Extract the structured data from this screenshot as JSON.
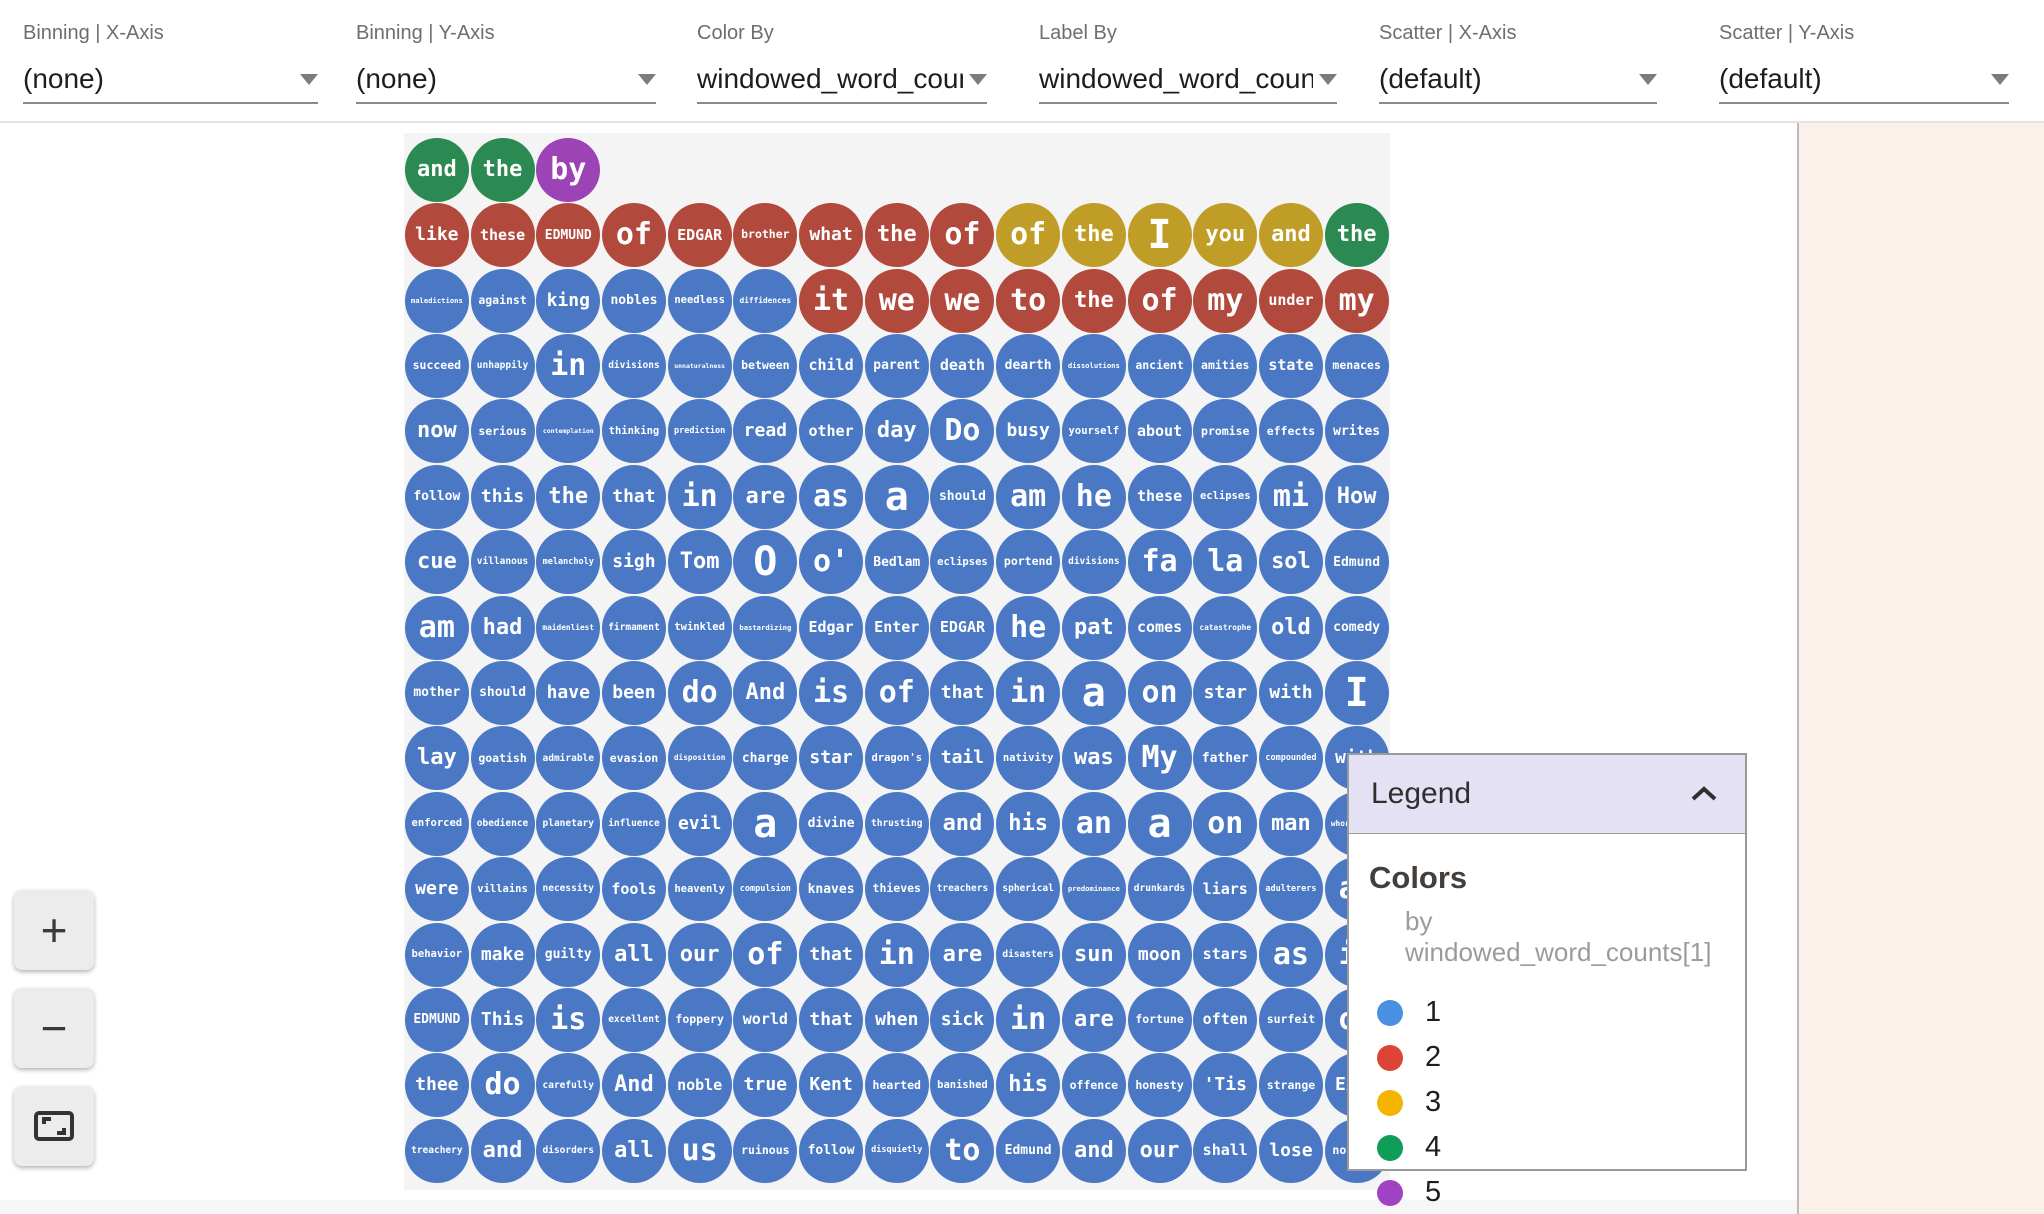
{
  "toolbar": {
    "dropdowns": [
      {
        "label": "Binning | X-Axis",
        "value": "(none)"
      },
      {
        "label": "Binning | Y-Axis",
        "value": "(none)"
      },
      {
        "label": "Color By",
        "value": "windowed_word_counts"
      },
      {
        "label": "Label By",
        "value": "windowed_word_counts"
      },
      {
        "label": "Scatter | X-Axis",
        "value": "(default)"
      },
      {
        "label": "Scatter | Y-Axis",
        "value": "(default)"
      }
    ]
  },
  "zoom_controls": {
    "zoom_in_label": "+",
    "zoom_out_label": "−",
    "fit_label": "fit-to-screen"
  },
  "legend": {
    "title": "Legend",
    "colors_heading": "Colors",
    "colors_subtitle": "by windowed_word_counts[1]",
    "items": [
      {
        "label": "1",
        "color": "#4a90e2"
      },
      {
        "label": "2",
        "color": "#db4437"
      },
      {
        "label": "3",
        "color": "#f4b400"
      },
      {
        "label": "4",
        "color": "#0f9d58"
      },
      {
        "label": "5",
        "color": "#a142c4"
      }
    ]
  },
  "chart_data": {
    "type": "bubble-grid",
    "description": "Facets-Dive style packed grid of word bubbles; color encodes windowed_word_counts[1] (1=blue, 2=red, 3=yellow, 4=green, 5=purple)",
    "color_by": "windowed_word_counts[1]",
    "grid_size": {
      "rows": 16,
      "cols": 15
    },
    "palette": {
      "1": "#4a78c5",
      "2": "#b2493d",
      "3": "#bf9d27",
      "4": "#2b8a52",
      "5": "#9c44b5"
    },
    "rows": [
      {
        "words": [
          "and",
          "the",
          "by"
        ],
        "counts": [
          4,
          4,
          5
        ]
      },
      {
        "words": [
          "like",
          "these",
          "EDMUND",
          "of",
          "EDGAR",
          "brother",
          "what",
          "the",
          "of",
          "of",
          "the",
          "I",
          "you",
          "and",
          "the"
        ],
        "counts": [
          2,
          2,
          2,
          2,
          2,
          2,
          2,
          2,
          2,
          3,
          3,
          3,
          3,
          3,
          4
        ]
      },
      {
        "words": [
          "maledictions",
          "against",
          "king",
          "nobles",
          "needless",
          "diffidences",
          "it",
          "we",
          "we",
          "to",
          "the",
          "of",
          "my",
          "under",
          "my"
        ],
        "counts": [
          1,
          1,
          1,
          1,
          1,
          1,
          2,
          2,
          2,
          2,
          2,
          2,
          2,
          2,
          2
        ]
      },
      {
        "words": [
          "succeed",
          "unhappily",
          "in",
          "divisions",
          "unnaturalness",
          "between",
          "child",
          "parent",
          "death",
          "dearth",
          "dissolutions",
          "ancient",
          "amities",
          "state",
          "menaces"
        ],
        "counts": [
          1,
          1,
          1,
          1,
          1,
          1,
          1,
          1,
          1,
          1,
          1,
          1,
          1,
          1,
          1
        ]
      },
      {
        "words": [
          "now",
          "serious",
          "contemplation",
          "thinking",
          "prediction",
          "read",
          "other",
          "day",
          "Do",
          "busy",
          "yourself",
          "about",
          "promise",
          "effects",
          "writes"
        ],
        "counts": [
          1,
          1,
          1,
          1,
          1,
          1,
          1,
          1,
          1,
          1,
          1,
          1,
          1,
          1,
          1
        ]
      },
      {
        "words": [
          "follow",
          "this",
          "the",
          "that",
          "in",
          "are",
          "as",
          "a",
          "should",
          "am",
          "he",
          "these",
          "eclipses",
          "mi",
          "How"
        ],
        "counts": [
          1,
          1,
          1,
          1,
          1,
          1,
          1,
          1,
          1,
          1,
          1,
          1,
          1,
          1,
          1
        ]
      },
      {
        "words": [
          "cue",
          "villanous",
          "melancholy",
          "sigh",
          "Tom",
          "O",
          "o'",
          "Bedlam",
          "eclipses",
          "portend",
          "divisions",
          "fa",
          "la",
          "sol",
          "Edmund"
        ],
        "counts": [
          1,
          1,
          1,
          1,
          1,
          1,
          1,
          1,
          1,
          1,
          1,
          1,
          1,
          1,
          1
        ]
      },
      {
        "words": [
          "am",
          "had",
          "maidenliest",
          "firmament",
          "twinkled",
          "bastardizing",
          "Edgar",
          "Enter",
          "EDGAR",
          "he",
          "pat",
          "comes",
          "catastrophe",
          "old",
          "comedy"
        ],
        "counts": [
          1,
          1,
          1,
          1,
          1,
          1,
          1,
          1,
          1,
          1,
          1,
          1,
          1,
          1,
          1
        ]
      },
      {
        "words": [
          "mother",
          "should",
          "have",
          "been",
          "do",
          "And",
          "is",
          "of",
          "that",
          "in",
          "a",
          "on",
          "star",
          "with",
          "I"
        ],
        "counts": [
          1,
          1,
          1,
          1,
          1,
          1,
          1,
          1,
          1,
          1,
          1,
          1,
          1,
          1,
          1
        ]
      },
      {
        "words": [
          "lay",
          "goatish",
          "admirable",
          "evasion",
          "disposition",
          "charge",
          "star",
          "dragon's",
          "tail",
          "nativity",
          "was",
          "My",
          "father",
          "compounded",
          "with"
        ],
        "counts": [
          1,
          1,
          1,
          1,
          1,
          1,
          1,
          1,
          1,
          1,
          1,
          1,
          1,
          1,
          1
        ]
      },
      {
        "words": [
          "enforced",
          "obedience",
          "planetary",
          "influence",
          "evil",
          "a",
          "divine",
          "thrusting",
          "and",
          "his",
          "an",
          "a",
          "on",
          "man",
          "whoremaster"
        ],
        "counts": [
          1,
          1,
          1,
          1,
          1,
          1,
          1,
          1,
          1,
          1,
          1,
          1,
          1,
          1,
          1
        ]
      },
      {
        "words": [
          "were",
          "villains",
          "necessity",
          "fools",
          "heavenly",
          "compulsion",
          "knaves",
          "thieves",
          "treachers",
          "spherical",
          "predominance",
          "drunkards",
          "liars",
          "adulterers",
          "an"
        ],
        "counts": [
          1,
          1,
          1,
          1,
          1,
          1,
          1,
          1,
          1,
          1,
          1,
          1,
          1,
          1,
          1
        ]
      },
      {
        "words": [
          "behavior",
          "make",
          "guilty",
          "all",
          "our",
          "of",
          "that",
          "in",
          "are",
          "disasters",
          "sun",
          "moon",
          "stars",
          "as",
          "if"
        ],
        "counts": [
          1,
          1,
          1,
          1,
          1,
          1,
          1,
          1,
          1,
          1,
          1,
          1,
          1,
          1,
          1
        ]
      },
      {
        "words": [
          "EDMUND",
          "This",
          "is",
          "excellent",
          "foppery",
          "world",
          "that",
          "when",
          "sick",
          "in",
          "are",
          "fortune",
          "often",
          "surfeit",
          "of"
        ],
        "counts": [
          1,
          1,
          1,
          1,
          1,
          1,
          1,
          1,
          1,
          1,
          1,
          1,
          1,
          1,
          1
        ]
      },
      {
        "words": [
          "thee",
          "do",
          "carefully",
          "And",
          "noble",
          "true",
          "Kent",
          "hearted",
          "banished",
          "his",
          "offence",
          "honesty",
          "'Tis",
          "strange",
          "Exit"
        ],
        "counts": [
          1,
          1,
          1,
          1,
          1,
          1,
          1,
          1,
          1,
          1,
          1,
          1,
          1,
          1,
          1
        ]
      },
      {
        "words": [
          "treachery",
          "and",
          "disorders",
          "all",
          "us",
          "ruinous",
          "follow",
          "disquietly",
          "to",
          "Edmund",
          "and",
          "our",
          "shall",
          "lose",
          "nothing"
        ],
        "counts": [
          1,
          1,
          1,
          1,
          1,
          1,
          1,
          1,
          1,
          1,
          1,
          1,
          1,
          1,
          1
        ]
      }
    ]
  }
}
